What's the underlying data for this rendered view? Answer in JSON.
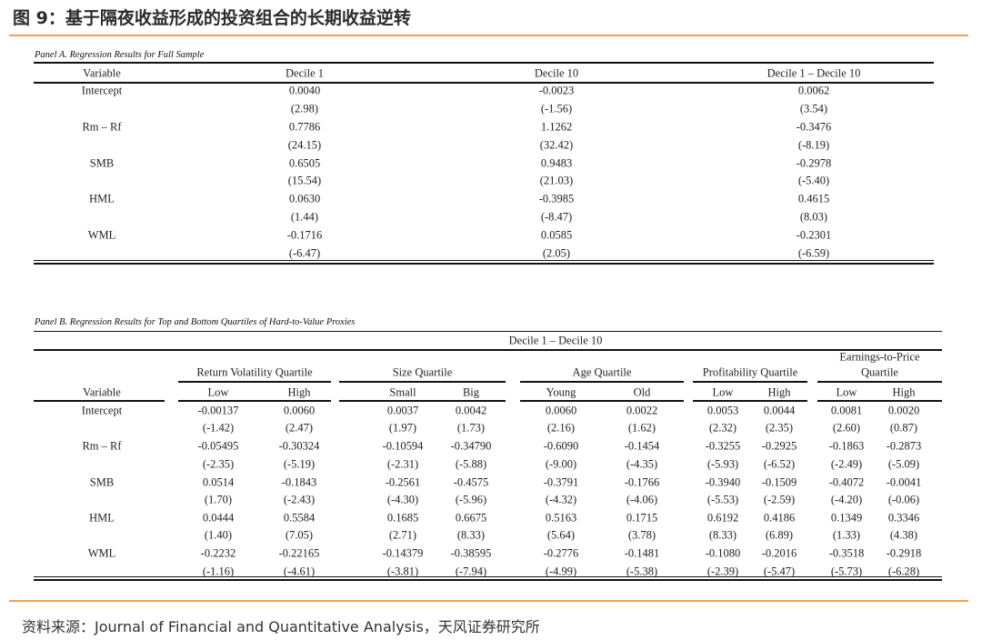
{
  "title": "图 9：基于隔夜收益形成的投资组合的长期收益逆转",
  "rm_rf": {
    "r1": "R",
    "s1": "m",
    "dash": " – ",
    "r2": "R",
    "s2": "f"
  },
  "panel_a": {
    "caption": "Panel A. Regression Results for Full Sample",
    "headers": [
      "Variable",
      "Decile 1",
      "Decile 10",
      "Decile 1 – Decile 10"
    ],
    "rows": [
      {
        "variable": "Intercept",
        "coef": [
          "0.0040",
          "-0.0023",
          "0.0062"
        ],
        "t": [
          "(2.98)",
          "(-1.56)",
          "(3.54)"
        ]
      },
      {
        "variable": "Rm – Rf",
        "coef": [
          "0.7786",
          "1.1262",
          "-0.3476"
        ],
        "t": [
          "(24.15)",
          "(32.42)",
          "(-8.19)"
        ]
      },
      {
        "variable": "SMB",
        "coef": [
          "0.6505",
          "0.9483",
          "-0.2978"
        ],
        "t": [
          "(15.54)",
          "(21.03)",
          "(-5.40)"
        ]
      },
      {
        "variable": "HML",
        "coef": [
          "0.0630",
          "-0.3985",
          "0.4615"
        ],
        "t": [
          "(1.44)",
          "(-8.47)",
          "(8.03)"
        ]
      },
      {
        "variable": "WML",
        "coef": [
          "-0.1716",
          "0.0585",
          "-0.2301"
        ],
        "t": [
          "(-6.47)",
          "(2.05)",
          "(-6.59)"
        ]
      }
    ]
  },
  "panel_b": {
    "caption": "Panel B. Regression Results for Top and Bottom Quartiles of Hard-to-Value Proxies",
    "spanner": "Decile 1 – Decile 10",
    "groups": [
      "Return Volatility Quartile",
      "Size Quartile",
      "Age Quartile",
      "Profitability Quartile",
      "Earnings-to-Price",
      "Quartile"
    ],
    "variable_header": "Variable",
    "subheaders": [
      "Low",
      "High",
      "Small",
      "Big",
      "Young",
      "Old",
      "Low",
      "High",
      "Low",
      "High"
    ],
    "rows": [
      {
        "variable": "Intercept",
        "coef": [
          "-0.00137",
          "0.0060",
          "0.0037",
          "0.0042",
          "0.0060",
          "0.0022",
          "0.0053",
          "0.0044",
          "0.0081",
          "0.0020"
        ],
        "t": [
          "(-1.42)",
          "(2.47)",
          "(1.97)",
          "(1.73)",
          "(2.16)",
          "(1.62)",
          "(2.32)",
          "(2.35)",
          "(2.60)",
          "(0.87)"
        ]
      },
      {
        "variable": "Rm – Rf",
        "coef": [
          "-0.05495",
          "-0.30324",
          "-0.10594",
          "-0.34790",
          "-0.6090",
          "-0.1454",
          "-0.3255",
          "-0.2925",
          "-0.1863",
          "-0.2873"
        ],
        "t": [
          "(-2.35)",
          "(-5.19)",
          "(-2.31)",
          "(-5.88)",
          "(-9.00)",
          "(-4.35)",
          "(-5.93)",
          "(-6.52)",
          "(-2.49)",
          "(-5.09)"
        ]
      },
      {
        "variable": "SMB",
        "coef": [
          "0.0514",
          "-0.1843",
          "-0.2561",
          "-0.4575",
          "-0.3791",
          "-0.1766",
          "-0.3940",
          "-0.1509",
          "-0.4072",
          "-0.0041"
        ],
        "t": [
          "(1.70)",
          "(-2.43)",
          "(-4.30)",
          "(-5.96)",
          "(-4.32)",
          "(-4.06)",
          "(-5.53)",
          "(-2.59)",
          "(-4.20)",
          "(-0.06)"
        ]
      },
      {
        "variable": "HML",
        "coef": [
          "0.0444",
          "0.5584",
          "0.1685",
          "0.6675",
          "0.5163",
          "0.1715",
          "0.6192",
          "0.4186",
          "0.1349",
          "0.3346"
        ],
        "t": [
          "(1.40)",
          "(7.05)",
          "(2.71)",
          "(8.33)",
          "(5.64)",
          "(3.78)",
          "(8.33)",
          "(6.89)",
          "(1.33)",
          "(4.38)"
        ]
      },
      {
        "variable": "WML",
        "coef": [
          "-0.2232",
          "-0.22165",
          "-0.14379",
          "-0.38595",
          "-0.2776",
          "-0.1481",
          "-0.1080",
          "-0.2016",
          "-0.3518",
          "-0.2918"
        ],
        "t": [
          "(-1.16)",
          "(-4.61)",
          "(-3.81)",
          "(-7.94)",
          "(-4.99)",
          "(-5.38)",
          "(-2.39)",
          "(-5.47)",
          "(-5.73)",
          "(-6.28)"
        ]
      }
    ]
  },
  "footer": "资料来源：Journal of Financial and Quantitative Analysis，天风证券研究所",
  "colors": {
    "accent": "#f0a05a"
  }
}
